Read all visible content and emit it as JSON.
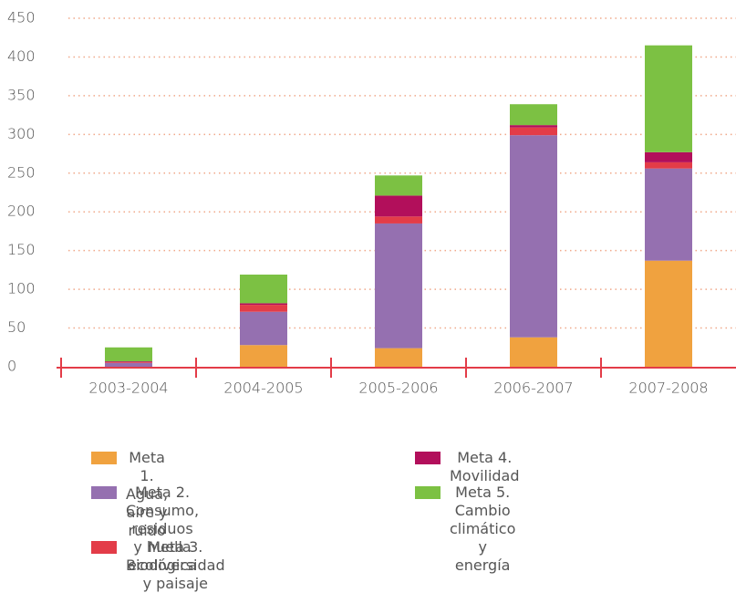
{
  "chart_data": {
    "type": "stacked_bar",
    "categories": [
      "2003-2004",
      "2004-2005",
      "2005-2006",
      "2006-2007",
      "2007-2008"
    ],
    "series": [
      {
        "name": "Meta 1. Agua, aire y ruido",
        "color": "#f0a23f",
        "values": [
          0,
          28,
          24,
          38,
          137
        ]
      },
      {
        "name": "Meta 2. Consumo, residuos\ny huella ecológica",
        "color": "#9570b0",
        "values": [
          5,
          43,
          161,
          261,
          119
        ]
      },
      {
        "name": "Meta 3. Biodiversidad y paisaje",
        "color": "#e33c48",
        "values": [
          1,
          9,
          9,
          10,
          8
        ]
      },
      {
        "name": "Meta 4. Movilidad",
        "color": "#b20f5b",
        "values": [
          1,
          2,
          27,
          3,
          13
        ]
      },
      {
        "name": "Meta 5. Cambio climático\ny energía",
        "color": "#7cc143",
        "values": [
          18,
          37,
          26,
          27,
          138
        ]
      }
    ],
    "ylim": [
      0,
      450
    ],
    "yticks": [
      0,
      50,
      100,
      150,
      200,
      250,
      300,
      350,
      400,
      450
    ],
    "grid": true
  }
}
